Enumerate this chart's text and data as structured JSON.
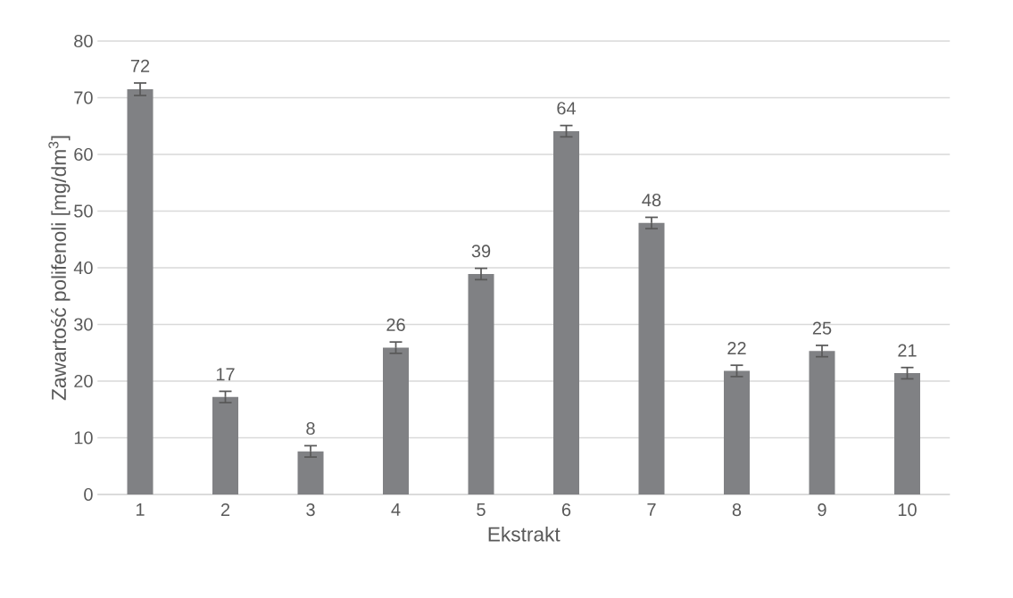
{
  "chart_data": {
    "type": "bar",
    "xlabel": "Ekstrakt",
    "ylabel": "Zawartość polifenoli  [mg/dm$^{3}$]",
    "categories": [
      "1",
      "2",
      "3",
      "4",
      "5",
      "6",
      "7",
      "8",
      "9",
      "10"
    ],
    "values": [
      71.5,
      17.2,
      7.6,
      25.9,
      38.9,
      64.1,
      47.9,
      21.8,
      25.3,
      21.4
    ],
    "errors": [
      1.1,
      1.0,
      1.0,
      1.0,
      1.0,
      1.0,
      1.0,
      1.0,
      1.0,
      1.0
    ],
    "value_labels": [
      "72",
      "17",
      "8",
      "26",
      "39",
      "64",
      "48",
      "22",
      "25",
      "21"
    ],
    "color": "#808184",
    "ylim": [
      0,
      80
    ],
    "yticks": [
      0,
      10,
      20,
      30,
      40,
      50,
      60,
      70,
      80
    ],
    "grid": "y"
  }
}
